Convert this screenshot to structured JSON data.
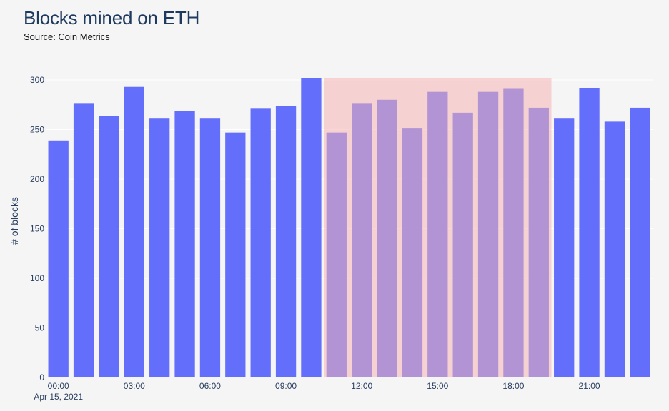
{
  "title": "Blocks mined on ETH",
  "subtitle": "Source: Coin Metrics",
  "colors": {
    "background": "#f5f5f5",
    "bar": "#636efa",
    "highlight": "#f4b3b3",
    "grid": "#ffffff",
    "text": "#2a3f5f"
  },
  "chart_data": {
    "type": "bar",
    "ylabel": "# of blocks",
    "xlabel": "",
    "ylim": [
      0,
      300
    ],
    "yticks": [
      0,
      50,
      100,
      150,
      200,
      250,
      300
    ],
    "x_date_label": "Apr 15, 2021",
    "categories": [
      "00:00",
      "01:00",
      "02:00",
      "03:00",
      "04:00",
      "05:00",
      "06:00",
      "07:00",
      "08:00",
      "09:00",
      "10:00",
      "11:00",
      "12:00",
      "13:00",
      "14:00",
      "15:00",
      "16:00",
      "17:00",
      "18:00",
      "19:00",
      "20:00",
      "21:00",
      "22:00",
      "23:00"
    ],
    "xtick_labels": [
      "00:00",
      "03:00",
      "06:00",
      "09:00",
      "12:00",
      "15:00",
      "18:00",
      "21:00"
    ],
    "values": [
      239,
      276,
      264,
      293,
      261,
      269,
      261,
      247,
      271,
      274,
      302,
      247,
      276,
      280,
      251,
      288,
      267,
      288,
      291,
      272,
      261,
      292,
      258,
      272
    ],
    "highlight_region": {
      "x_start": "10:30",
      "x_end": "19:30",
      "y_top": 302
    },
    "grid": true
  }
}
